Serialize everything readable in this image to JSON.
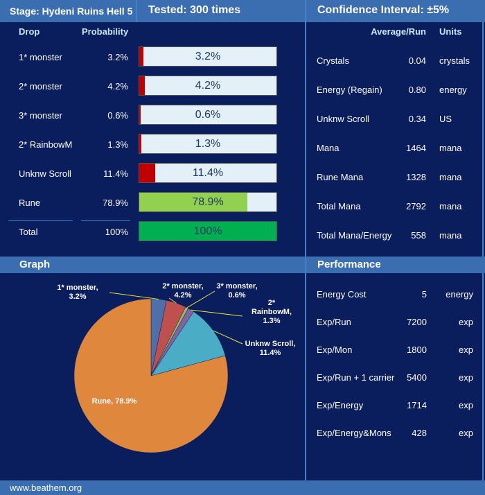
{
  "header": {
    "stage": "Stage: Hydeni Ruins Hell 5",
    "tested": "Tested: 300 times",
    "confidence": "Confidence Interval: ±5%"
  },
  "drops": {
    "col_drop": "Drop",
    "col_prob": "Probability",
    "rows": [
      {
        "name": "1* monster",
        "prob": "3.2%",
        "value": 3.2,
        "color": "#c00000"
      },
      {
        "name": "2* monster",
        "prob": "4.2%",
        "value": 4.2,
        "color": "#c00000"
      },
      {
        "name": "3* monster",
        "prob": "0.6%",
        "value": 0.6,
        "color": "#c00000"
      },
      {
        "name": "2* RainbowM",
        "prob": "1.3%",
        "value": 1.3,
        "color": "#c00000"
      },
      {
        "name": "Unknw Scroll",
        "prob": "11.4%",
        "value": 11.4,
        "color": "#c00000"
      },
      {
        "name": "Rune",
        "prob": "78.9%",
        "value": 78.9,
        "color": "#92d050"
      }
    ],
    "total": {
      "name": "Total",
      "prob": "100%",
      "value": 100,
      "color": "#00b050"
    }
  },
  "averages": {
    "col_avg": "Average/Run",
    "col_units": "Units",
    "rows": [
      {
        "name": "Crystals",
        "value": "0.04",
        "unit": "crystals"
      },
      {
        "name": "Energy (Regain)",
        "value": "0.80",
        "unit": "energy"
      },
      {
        "name": "Unknw Scroll",
        "value": "0.34",
        "unit": "US"
      },
      {
        "name": "Mana",
        "value": "1464",
        "unit": "mana"
      },
      {
        "name": "Rune Mana",
        "value": "1328",
        "unit": "mana"
      },
      {
        "name": "Total Mana",
        "value": "2792",
        "unit": "mana"
      },
      {
        "name": "Total Mana/Energy",
        "value": "558",
        "unit": "mana"
      }
    ]
  },
  "graph": {
    "title": "Graph"
  },
  "performance": {
    "title": "Performance",
    "rows": [
      {
        "name": "Energy Cost",
        "value": "5",
        "unit": "energy"
      },
      {
        "name": "Exp/Run",
        "value": "7200",
        "unit": "exp"
      },
      {
        "name": "Exp/Mon",
        "value": "1800",
        "unit": "exp"
      },
      {
        "name": "Exp/Run + 1 carrier",
        "value": "5400",
        "unit": "exp"
      },
      {
        "name": "Exp/Energy",
        "value": "1714",
        "unit": "exp"
      },
      {
        "name": "Exp/Energy&Mons",
        "value": "428",
        "unit": "exp"
      }
    ]
  },
  "footer": {
    "site": "www.beathem.org"
  },
  "chart_data": {
    "type": "pie",
    "slices": [
      {
        "label": "1* monster",
        "value": 3.2,
        "display": "3.2%",
        "color": "#4f6fa8"
      },
      {
        "label": "2* monster",
        "value": 4.2,
        "display": "4.2%",
        "color": "#c0504d"
      },
      {
        "label": "3* monster",
        "value": 0.6,
        "display": "0.6%",
        "color": "#9bbb59"
      },
      {
        "label": "2* RainbowM",
        "value": 1.3,
        "display": "1.3%",
        "color": "#8064a2"
      },
      {
        "label": "Unknw Scroll",
        "value": 11.4,
        "display": "11.4%",
        "color": "#4bacc6"
      },
      {
        "label": "Rune",
        "value": 78.9,
        "display": "78.9%",
        "color": "#e0873e"
      }
    ]
  }
}
